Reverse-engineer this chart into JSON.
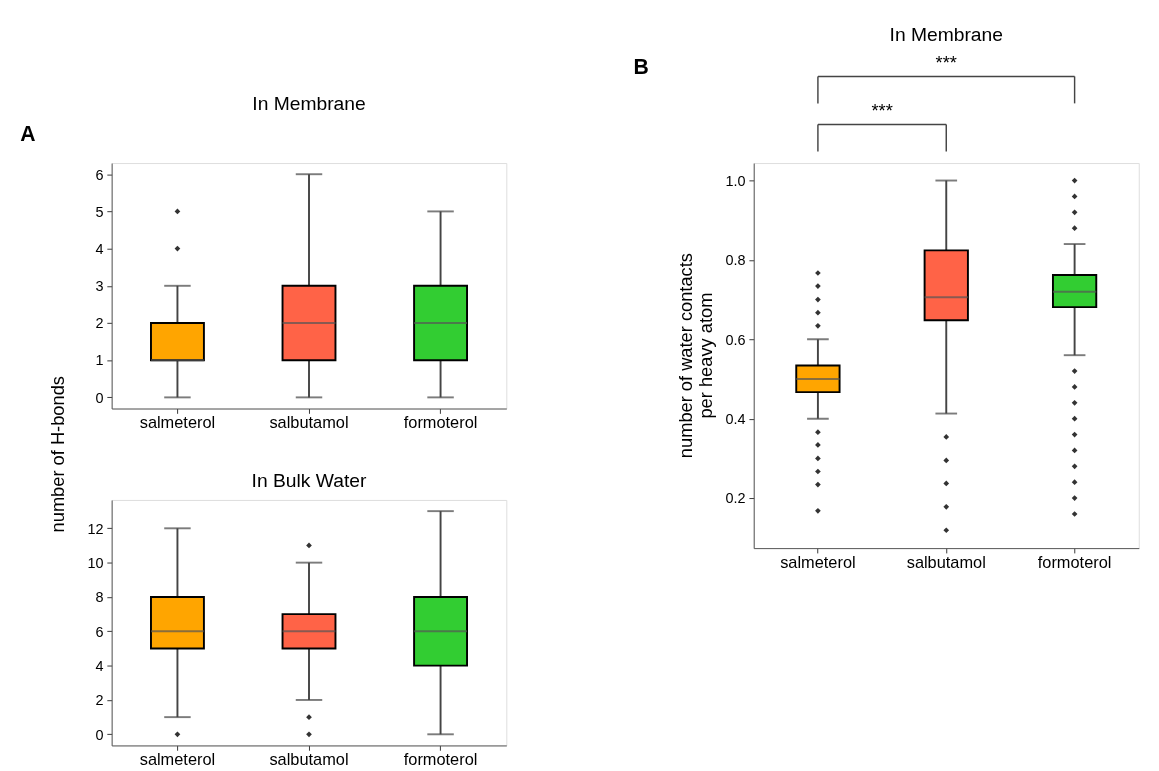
{
  "chart_data": [
    {
      "type": "box",
      "title": "In Membrane",
      "ylabel": "number of H-bonds",
      "categories": [
        "salmeterol",
        "salbutamol",
        "formoterol"
      ],
      "colors": [
        "#ffa500",
        "#ff6347",
        "#32cd32"
      ],
      "ylim": [
        -0.3,
        6.3
      ],
      "yticks": [
        0,
        1,
        2,
        3,
        4,
        5,
        6
      ],
      "grid": false,
      "annotations": [
        "A"
      ],
      "boxes": [
        {
          "low": 0,
          "q1": 1,
          "median": 1,
          "q3": 2,
          "high": 3,
          "outliers": [
            4,
            5
          ]
        },
        {
          "low": 0,
          "q1": 1,
          "median": 2,
          "q3": 3,
          "high": 6
        },
        {
          "low": 0,
          "q1": 1,
          "median": 2,
          "q3": 3,
          "high": 5
        }
      ]
    },
    {
      "type": "box",
      "title": "In Bulk Water",
      "categories": [
        "salmeterol",
        "salbutamol",
        "formoterol"
      ],
      "colors": [
        "#ffa500",
        "#ff6347",
        "#32cd32"
      ],
      "ylim": [
        -0.65,
        13.65
      ],
      "yticks": [
        0,
        2,
        4,
        6,
        8,
        10,
        12
      ],
      "grid": false,
      "boxes": [
        {
          "low": 1,
          "q1": 5,
          "median": 6,
          "q3": 8,
          "high": 12,
          "outliers": [
            0
          ]
        },
        {
          "low": 2,
          "q1": 5,
          "median": 6,
          "q3": 7,
          "high": 10,
          "outliers": [
            0,
            1,
            11
          ]
        },
        {
          "low": 0,
          "q1": 4,
          "median": 6,
          "q3": 8,
          "high": 13
        }
      ]
    },
    {
      "type": "box",
      "title": "In Membrane",
      "ylabel": "number of water contacts\nper heavy atom",
      "categories": [
        "salmeterol",
        "salbutamol",
        "formoterol"
      ],
      "colors": [
        "#ffa500",
        "#ff6347",
        "#32cd32"
      ],
      "ylim": [
        0.074,
        1.044
      ],
      "yticks": [
        0.2,
        0.4,
        0.6,
        0.8,
        {
          "value": 1.0,
          "label": "1.0"
        }
      ],
      "grid": false,
      "annotations": [
        "B",
        "***",
        "***"
      ],
      "boxes": [
        {
          "low": 0.4,
          "q1": 0.467,
          "median": 0.5,
          "q3": 0.534,
          "high": 0.6,
          "outliers": [
            0.168,
            0.234,
            0.267,
            0.3,
            0.334,
            0.366,
            0.634,
            0.667,
            0.7,
            0.734,
            0.767
          ]
        },
        {
          "low": 0.413,
          "q1": 0.648,
          "median": 0.706,
          "q3": 0.824,
          "high": 1.0,
          "outliers": [
            0.119,
            0.178,
            0.237,
            0.295,
            0.354
          ]
        },
        {
          "low": 0.56,
          "q1": 0.681,
          "median": 0.72,
          "q3": 0.762,
          "high": 0.84,
          "outliers": [
            0.16,
            0.2,
            0.24,
            0.28,
            0.32,
            0.36,
            0.4,
            0.44,
            0.48,
            0.52,
            0.88,
            0.92,
            0.96,
            1.0
          ]
        }
      ]
    }
  ]
}
